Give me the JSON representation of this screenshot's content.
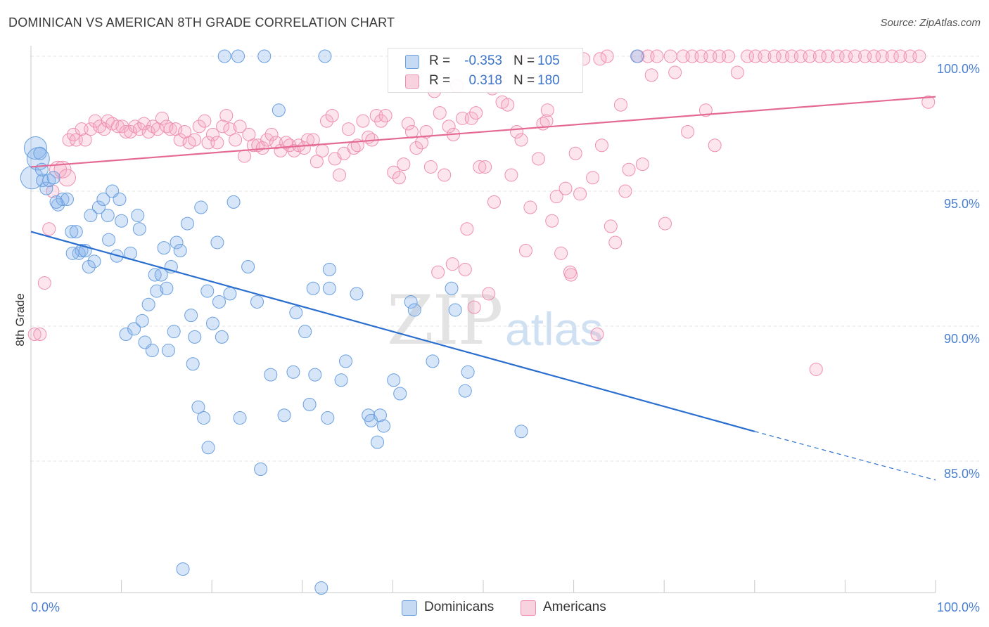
{
  "title": "DOMINICAN VS AMERICAN 8TH GRADE CORRELATION CHART",
  "source": "Source: ZipAtlas.com",
  "watermark": {
    "zip": "ZIP",
    "atlas": "atlas"
  },
  "colors": {
    "dominicans": "#6a9fe0",
    "americans": "#ef8fb0",
    "dominicans_line": "#2a6fd0",
    "americans_line": "#e46a95",
    "tick_label": "#4a7fd0"
  },
  "legend_top": {
    "rows": [
      {
        "r_label": "R =",
        "r_value": "-0.353",
        "n_label": "N =",
        "n_value": "105"
      },
      {
        "r_label": "R =",
        "r_value": "0.318",
        "n_label": "N =",
        "n_value": "180"
      }
    ]
  },
  "legend_bottom": {
    "items": [
      "Dominicans",
      "Americans"
    ]
  },
  "chart_data": {
    "type": "scatter",
    "title": "DOMINICAN VS AMERICAN 8TH GRADE CORRELATION CHART",
    "xlabel": "",
    "ylabel": "8th Grade",
    "xlim": [
      0,
      100
    ],
    "ylim": [
      80.5,
      100.8
    ],
    "x_tick_labels": [
      {
        "value": 0,
        "label": "0.0%"
      },
      {
        "value": 100,
        "label": "100.0%"
      }
    ],
    "y_tick_labels": [
      {
        "value": 100,
        "label": "100.0%"
      },
      {
        "value": 95,
        "label": "95.0%"
      },
      {
        "value": 90,
        "label": "90.0%"
      },
      {
        "value": 85,
        "label": "85.0%"
      }
    ],
    "grid": true,
    "series": [
      {
        "name": "Dominicans",
        "r": -0.353,
        "n": 105,
        "trend": {
          "x0": 0,
          "y0": 93.5,
          "x1": 80,
          "y1": 86.1,
          "dashed_to_x": 100,
          "dashed_to_y": 84.3
        },
        "points": [
          [
            0.1,
            95.5
          ],
          [
            0.5,
            96.6
          ],
          [
            0.8,
            96.2
          ],
          [
            1.0,
            96.4
          ],
          [
            1.3,
            95.4
          ],
          [
            1.7,
            95.1
          ],
          [
            2.0,
            95.4
          ],
          [
            2.5,
            95.5
          ],
          [
            3.0,
            94.5
          ],
          [
            3.5,
            94.7
          ],
          [
            4.0,
            94.7
          ],
          [
            4.5,
            93.5
          ],
          [
            5.0,
            93.5
          ],
          [
            5.3,
            92.7
          ],
          [
            5.6,
            92.8
          ],
          [
            6.0,
            92.8
          ],
          [
            6.4,
            92.2
          ],
          [
            7.0,
            92.4
          ],
          [
            7.5,
            94.4
          ],
          [
            8.0,
            94.7
          ],
          [
            8.5,
            94.1
          ],
          [
            8.6,
            93.2
          ],
          [
            9.0,
            95.0
          ],
          [
            9.5,
            92.6
          ],
          [
            9.8,
            94.7
          ],
          [
            10.0,
            93.9
          ],
          [
            10.5,
            89.7
          ],
          [
            11.0,
            92.7
          ],
          [
            11.4,
            89.9
          ],
          [
            11.8,
            94.1
          ],
          [
            12.0,
            93.6
          ],
          [
            12.3,
            90.2
          ],
          [
            12.6,
            89.4
          ],
          [
            13.0,
            90.8
          ],
          [
            13.4,
            89.1
          ],
          [
            13.7,
            91.9
          ],
          [
            13.9,
            91.3
          ],
          [
            14.4,
            91.9
          ],
          [
            14.7,
            92.9
          ],
          [
            15.0,
            91.4
          ],
          [
            15.2,
            89.1
          ],
          [
            15.5,
            92.2
          ],
          [
            15.8,
            89.8
          ],
          [
            16.1,
            93.1
          ],
          [
            16.5,
            92.8
          ],
          [
            16.8,
            81.0
          ],
          [
            17.3,
            93.8
          ],
          [
            17.7,
            90.4
          ],
          [
            17.9,
            88.6
          ],
          [
            18.1,
            89.6
          ],
          [
            18.5,
            87.0
          ],
          [
            18.8,
            94.4
          ],
          [
            19.1,
            86.6
          ],
          [
            19.5,
            91.3
          ],
          [
            19.6,
            85.5
          ],
          [
            20.1,
            90.1
          ],
          [
            20.6,
            93.1
          ],
          [
            20.8,
            90.9
          ],
          [
            21.1,
            89.6
          ],
          [
            21.4,
            100.0
          ],
          [
            22.0,
            91.2
          ],
          [
            22.4,
            94.6
          ],
          [
            22.9,
            100.0
          ],
          [
            23.1,
            86.6
          ],
          [
            24.0,
            92.2
          ],
          [
            25.0,
            90.9
          ],
          [
            25.4,
            84.7
          ],
          [
            25.8,
            100.0
          ],
          [
            26.5,
            88.2
          ],
          [
            27.4,
            98.0
          ],
          [
            28.0,
            86.7
          ],
          [
            29.0,
            88.3
          ],
          [
            29.3,
            90.5
          ],
          [
            30.3,
            89.8
          ],
          [
            30.8,
            87.1
          ],
          [
            31.2,
            91.4
          ],
          [
            31.4,
            88.2
          ],
          [
            32.1,
            80.3
          ],
          [
            32.5,
            100.0
          ],
          [
            32.8,
            86.6
          ],
          [
            33.0,
            91.4
          ],
          [
            33.0,
            92.1
          ],
          [
            34.3,
            88.0
          ],
          [
            34.8,
            88.7
          ],
          [
            36.0,
            91.2
          ],
          [
            37.3,
            86.7
          ],
          [
            37.6,
            86.5
          ],
          [
            38.3,
            85.7
          ],
          [
            38.6,
            86.7
          ],
          [
            39.0,
            86.3
          ],
          [
            40.1,
            88.0
          ],
          [
            40.8,
            87.5
          ],
          [
            42.0,
            90.9
          ],
          [
            42.4,
            90.6
          ],
          [
            44.4,
            88.7
          ],
          [
            46.5,
            91.4
          ],
          [
            46.9,
            90.6
          ],
          [
            48.0,
            87.6
          ],
          [
            48.3,
            88.3
          ],
          [
            54.2,
            86.1
          ],
          [
            67.0,
            100.0
          ],
          [
            1.2,
            95.8
          ],
          [
            2.8,
            94.6
          ],
          [
            4.6,
            92.7
          ],
          [
            6.6,
            94.1
          ]
        ]
      },
      {
        "name": "Americans",
        "r": 0.318,
        "n": 180,
        "trend": {
          "x0": 0,
          "y0": 95.9,
          "x1": 100,
          "y1": 98.5
        },
        "points": [
          [
            0.4,
            89.7
          ],
          [
            1.0,
            89.7
          ],
          [
            1.5,
            91.6
          ],
          [
            2.0,
            93.6
          ],
          [
            2.4,
            95.0
          ],
          [
            3.0,
            95.8
          ],
          [
            3.5,
            95.8
          ],
          [
            4.0,
            95.5
          ],
          [
            4.2,
            96.9
          ],
          [
            4.7,
            97.1
          ],
          [
            5.0,
            96.9
          ],
          [
            5.6,
            97.3
          ],
          [
            6.0,
            96.9
          ],
          [
            6.6,
            97.3
          ],
          [
            7.1,
            97.6
          ],
          [
            7.6,
            97.4
          ],
          [
            8.1,
            97.3
          ],
          [
            8.5,
            97.6
          ],
          [
            9.0,
            97.5
          ],
          [
            9.6,
            97.4
          ],
          [
            10.1,
            97.4
          ],
          [
            10.5,
            97.2
          ],
          [
            11.0,
            97.2
          ],
          [
            11.5,
            97.4
          ],
          [
            12.0,
            97.3
          ],
          [
            12.5,
            97.5
          ],
          [
            13.0,
            97.2
          ],
          [
            13.5,
            97.4
          ],
          [
            14.0,
            97.3
          ],
          [
            14.5,
            97.7
          ],
          [
            15.0,
            97.4
          ],
          [
            15.4,
            97.3
          ],
          [
            16.0,
            97.3
          ],
          [
            16.5,
            96.9
          ],
          [
            17.0,
            97.2
          ],
          [
            17.5,
            96.8
          ],
          [
            18.1,
            96.9
          ],
          [
            18.6,
            97.4
          ],
          [
            19.2,
            97.6
          ],
          [
            19.6,
            96.8
          ],
          [
            20.1,
            97.1
          ],
          [
            20.6,
            96.8
          ],
          [
            21.2,
            97.4
          ],
          [
            21.6,
            97.8
          ],
          [
            22.0,
            97.3
          ],
          [
            22.6,
            96.9
          ],
          [
            23.1,
            97.4
          ],
          [
            23.6,
            96.3
          ],
          [
            24.1,
            97.1
          ],
          [
            24.6,
            96.7
          ],
          [
            25.1,
            96.7
          ],
          [
            25.6,
            96.6
          ],
          [
            26.1,
            96.9
          ],
          [
            26.6,
            97.1
          ],
          [
            27.1,
            96.8
          ],
          [
            27.6,
            96.5
          ],
          [
            28.2,
            96.8
          ],
          [
            28.6,
            96.7
          ],
          [
            29.1,
            96.5
          ],
          [
            29.6,
            96.7
          ],
          [
            30.2,
            96.6
          ],
          [
            30.6,
            96.9
          ],
          [
            31.2,
            96.9
          ],
          [
            31.6,
            96.1
          ],
          [
            32.2,
            96.5
          ],
          [
            32.7,
            97.6
          ],
          [
            33.3,
            97.8
          ],
          [
            33.6,
            96.2
          ],
          [
            34.1,
            95.6
          ],
          [
            34.6,
            96.4
          ],
          [
            35.1,
            97.3
          ],
          [
            35.7,
            96.6
          ],
          [
            36.1,
            96.7
          ],
          [
            36.7,
            97.6
          ],
          [
            37.3,
            97.0
          ],
          [
            37.7,
            96.9
          ],
          [
            38.2,
            97.8
          ],
          [
            38.7,
            97.6
          ],
          [
            39.2,
            97.8
          ],
          [
            40.1,
            95.7
          ],
          [
            40.7,
            95.5
          ],
          [
            41.2,
            96.0
          ],
          [
            41.7,
            97.5
          ],
          [
            42.1,
            97.2
          ],
          [
            42.6,
            96.6
          ],
          [
            43.2,
            96.8
          ],
          [
            43.7,
            97.2
          ],
          [
            44.2,
            95.9
          ],
          [
            44.6,
            98.7
          ],
          [
            45.2,
            97.9
          ],
          [
            45.7,
            95.6
          ],
          [
            46.2,
            97.4
          ],
          [
            46.7,
            97.1
          ],
          [
            47.1,
            98.9
          ],
          [
            47.7,
            97.7
          ],
          [
            48.2,
            93.6
          ],
          [
            48.7,
            97.7
          ],
          [
            49.2,
            97.9
          ],
          [
            49.6,
            95.9
          ],
          [
            50.2,
            95.9
          ],
          [
            50.7,
            99.1
          ],
          [
            51.2,
            94.6
          ],
          [
            51.7,
            99.2
          ],
          [
            52.1,
            98.3
          ],
          [
            52.7,
            98.2
          ],
          [
            53.1,
            95.6
          ],
          [
            53.7,
            97.2
          ],
          [
            54.2,
            96.9
          ],
          [
            54.7,
            92.8
          ],
          [
            55.2,
            94.4
          ],
          [
            56.1,
            96.2
          ],
          [
            56.6,
            97.5
          ],
          [
            57.1,
            98.0
          ],
          [
            57.6,
            93.9
          ],
          [
            58.1,
            94.8
          ],
          [
            58.6,
            92.7
          ],
          [
            59.1,
            95.1
          ],
          [
            59.7,
            91.9
          ],
          [
            60.2,
            96.4
          ],
          [
            60.7,
            94.9
          ],
          [
            61.1,
            99.9
          ],
          [
            62.1,
            95.5
          ],
          [
            62.6,
            89.7
          ],
          [
            63.1,
            96.7
          ],
          [
            63.7,
            100.0
          ],
          [
            64.1,
            93.7
          ],
          [
            64.6,
            93.1
          ],
          [
            65.2,
            98.2
          ],
          [
            65.7,
            95.0
          ],
          [
            66.1,
            95.8
          ],
          [
            67.1,
            100.0
          ],
          [
            67.6,
            96.0
          ],
          [
            68.2,
            100.0
          ],
          [
            68.6,
            99.3
          ],
          [
            69.2,
            100.0
          ],
          [
            70.1,
            93.8
          ],
          [
            70.7,
            100.0
          ],
          [
            71.2,
            99.4
          ],
          [
            72.1,
            100.0
          ],
          [
            72.6,
            97.2
          ],
          [
            73.1,
            100.0
          ],
          [
            74.1,
            100.0
          ],
          [
            74.6,
            98.0
          ],
          [
            75.1,
            100.0
          ],
          [
            75.6,
            96.7
          ],
          [
            76.1,
            100.0
          ],
          [
            77.1,
            100.0
          ],
          [
            78.1,
            99.4
          ],
          [
            79.2,
            100.0
          ],
          [
            80.1,
            100.0
          ],
          [
            81.1,
            100.0
          ],
          [
            82.2,
            100.0
          ],
          [
            83.1,
            100.0
          ],
          [
            84.1,
            100.0
          ],
          [
            85.1,
            100.0
          ],
          [
            86.1,
            100.0
          ],
          [
            86.8,
            88.4
          ],
          [
            87.2,
            100.0
          ],
          [
            88.1,
            100.0
          ],
          [
            89.2,
            100.0
          ],
          [
            90.1,
            100.0
          ],
          [
            91.1,
            100.0
          ],
          [
            92.2,
            100.0
          ],
          [
            93.2,
            100.0
          ],
          [
            94.1,
            100.0
          ],
          [
            95.2,
            100.0
          ],
          [
            96.1,
            100.0
          ],
          [
            97.2,
            100.0
          ],
          [
            98.2,
            100.0
          ],
          [
            99.2,
            98.3
          ],
          [
            62.9,
            99.9
          ],
          [
            54.0,
            100.0
          ],
          [
            51.0,
            98.8
          ],
          [
            57.0,
            97.6
          ],
          [
            59.6,
            92.0
          ],
          [
            48.0,
            92.1
          ],
          [
            46.6,
            92.3
          ],
          [
            49.0,
            90.7
          ],
          [
            50.6,
            91.2
          ],
          [
            45.0,
            92.0
          ]
        ]
      }
    ]
  }
}
